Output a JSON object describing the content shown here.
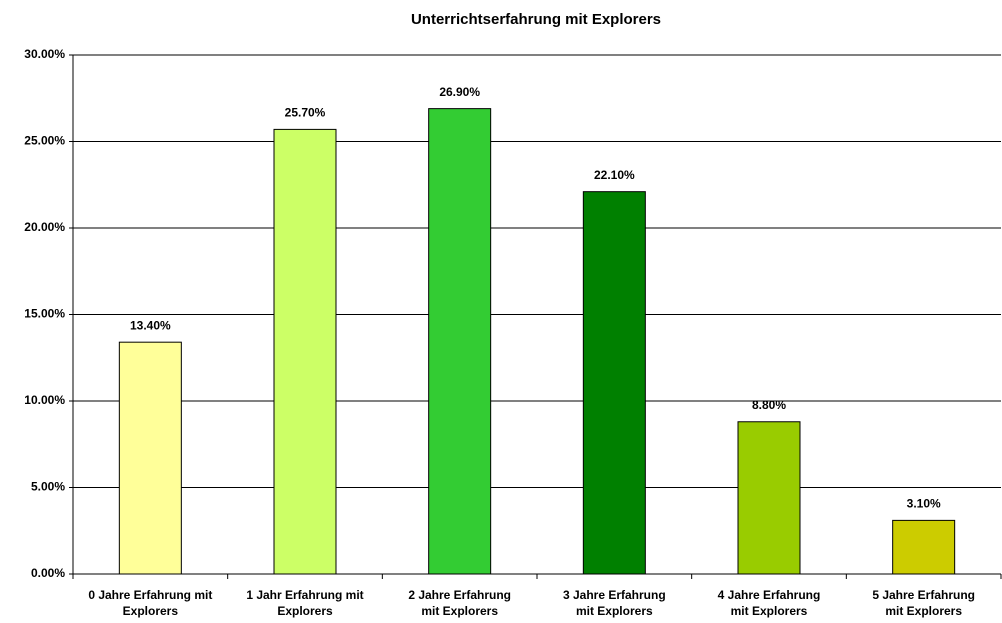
{
  "chart_data": {
    "type": "bar",
    "title": "Unterrichtserfahrung mit Explorers",
    "categories": [
      [
        "0 Jahre Erfahrung mit",
        "Explorers"
      ],
      [
        "1 Jahr Erfahrung mit",
        "Explorers"
      ],
      [
        "2 Jahre Erfahrung",
        "mit Explorers"
      ],
      [
        "3 Jahre Erfahrung",
        "mit Explorers"
      ],
      [
        "4 Jahre Erfahrung",
        "mit Explorers"
      ],
      [
        "5 Jahre Erfahrung",
        "mit Explorers"
      ]
    ],
    "values": [
      13.4,
      25.7,
      26.9,
      22.1,
      8.8,
      3.1
    ],
    "value_labels": [
      "13.40%",
      "25.70%",
      "26.90%",
      "22.10%",
      "8.80%",
      "3.10%"
    ],
    "colors": [
      "#ffff99",
      "#ccff66",
      "#33cc33",
      "#008000",
      "#99cc00",
      "#cccc00"
    ],
    "ylim": [
      0,
      30
    ],
    "yticks": [
      {
        "value": 0,
        "label": "0.00%"
      },
      {
        "value": 5,
        "label": "5.00%"
      },
      {
        "value": 10,
        "label": "10.00%"
      },
      {
        "value": 15,
        "label": "15.00%"
      },
      {
        "value": 20,
        "label": "20.00%"
      },
      {
        "value": 25,
        "label": "25.00%"
      },
      {
        "value": 30,
        "label": "30.00%"
      }
    ],
    "grid": true
  }
}
